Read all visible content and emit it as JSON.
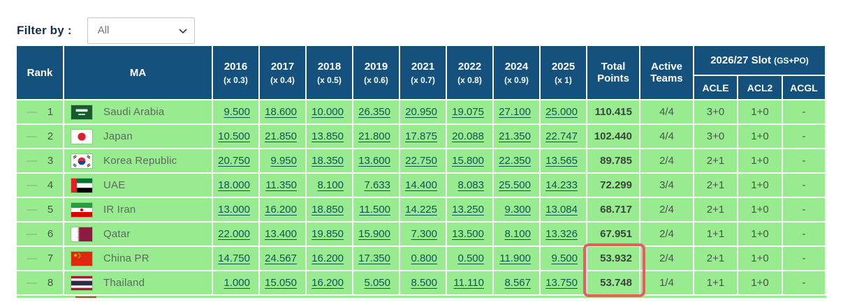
{
  "filter": {
    "label": "Filter by :",
    "value": "All"
  },
  "table": {
    "headers": {
      "rank": "Rank",
      "ma": "MA",
      "years": [
        {
          "year": "2016",
          "mult": "(x 0.3)"
        },
        {
          "year": "2017",
          "mult": "(x 0.4)"
        },
        {
          "year": "2018",
          "mult": "(x 0.5)"
        },
        {
          "year": "2019",
          "mult": "(x 0.6)"
        },
        {
          "year": "2021",
          "mult": "(x 0.7)"
        },
        {
          "year": "2022",
          "mult": "(x 0.8)"
        },
        {
          "year": "2024",
          "mult": "(x 0.9)"
        },
        {
          "year": "2025",
          "mult": "(x 1)"
        }
      ],
      "total": "Total Points",
      "active": "Active Teams",
      "slot_title": "2026/27 Slot",
      "slot_note": "(GS+PO)",
      "slot_cols": [
        "ACLE",
        "ACL2",
        "ACGL"
      ]
    },
    "rows": [
      {
        "movement": "—",
        "rank": "1",
        "flag": "sa",
        "country": "Saudi Arabia",
        "scores": [
          "9.500",
          "18.600",
          "10.000",
          "26.350",
          "20.950",
          "19.075",
          "27.100",
          "25.000"
        ],
        "total": "110.415",
        "active": "4/4",
        "acle": "3+0",
        "acl2": "1+0",
        "acgl": "-"
      },
      {
        "movement": "—",
        "rank": "2",
        "flag": "jp",
        "country": "Japan",
        "scores": [
          "10.500",
          "21.850",
          "13.850",
          "21.800",
          "17.875",
          "20.088",
          "21.350",
          "22.747"
        ],
        "total": "102.440",
        "active": "4/4",
        "acle": "3+0",
        "acl2": "1+0",
        "acgl": "-"
      },
      {
        "movement": "—",
        "rank": "3",
        "flag": "kr",
        "country": "Korea Republic",
        "scores": [
          "20.750",
          "9.950",
          "18.350",
          "13.600",
          "22.750",
          "15.800",
          "22.350",
          "13.565"
        ],
        "total": "89.785",
        "active": "2/4",
        "acle": "2+1",
        "acl2": "1+0",
        "acgl": "-"
      },
      {
        "movement": "—",
        "rank": "4",
        "flag": "ae",
        "country": "UAE",
        "scores": [
          "18.000",
          "11.350",
          "8.100",
          "7.633",
          "14.400",
          "8.083",
          "25.500",
          "14.233"
        ],
        "total": "72.299",
        "active": "3/4",
        "acle": "2+1",
        "acl2": "1+0",
        "acgl": "-"
      },
      {
        "movement": "—",
        "rank": "5",
        "flag": "ir",
        "country": "IR Iran",
        "scores": [
          "13.000",
          "16.200",
          "18.850",
          "11.500",
          "14.225",
          "13.250",
          "9.300",
          "13.084"
        ],
        "total": "68.717",
        "active": "2/4",
        "acle": "2+1",
        "acl2": "1+0",
        "acgl": "-"
      },
      {
        "movement": "—",
        "rank": "6",
        "flag": "qa",
        "country": "Qatar",
        "scores": [
          "22.000",
          "13.400",
          "19.850",
          "15.900",
          "7.300",
          "13.500",
          "8.100",
          "13.326"
        ],
        "total": "67.951",
        "active": "2/4",
        "acle": "1+1",
        "acl2": "1+0",
        "acgl": "-"
      },
      {
        "movement": "—",
        "rank": "7",
        "flag": "cn",
        "country": "China PR",
        "scores": [
          "14.750",
          "24.567",
          "16.200",
          "17.350",
          "0.800",
          "0.500",
          "11.900",
          "9.500"
        ],
        "total": "53.932",
        "active": "2/4",
        "acle": "2+1",
        "acl2": "1+0",
        "acgl": "-"
      },
      {
        "movement": "—",
        "rank": "8",
        "flag": "th",
        "country": "Thailand",
        "scores": [
          "1.000",
          "15.050",
          "16.200",
          "5.050",
          "8.500",
          "11.110",
          "8.567",
          "13.750"
        ],
        "total": "53.748",
        "active": "1/4",
        "acle": "1+1",
        "acl2": "1+0",
        "acgl": "-"
      }
    ],
    "highlight": {
      "rows": [
        "7",
        "8"
      ],
      "column": "Total Points"
    }
  },
  "colors": {
    "header_blue": "#14527d",
    "row_green": "#99eb8f",
    "link_teal": "#115457",
    "highlight_red": "#ed5c5a"
  }
}
